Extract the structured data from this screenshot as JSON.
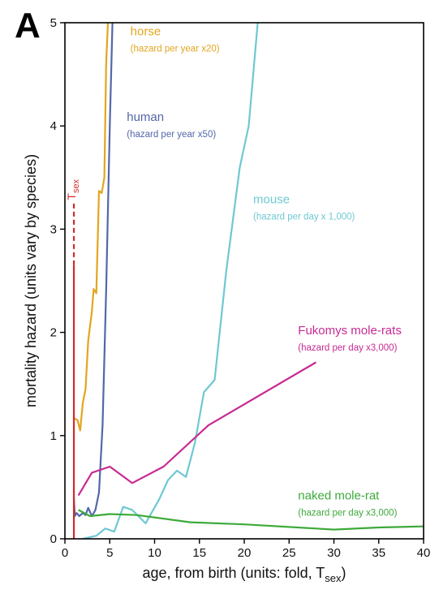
{
  "chart_data": {
    "type": "line",
    "panel_label": "A",
    "xlabel": "age, from birth (units: fold, T",
    "xlabel_sub": "sex",
    "xlabel_tail": ")",
    "ylabel": "mortality hazard (units vary by species)",
    "xlim": [
      0,
      40
    ],
    "ylim": [
      0,
      5
    ],
    "xticks": [
      0,
      5,
      10,
      15,
      20,
      25,
      30,
      35,
      40
    ],
    "yticks": [
      0,
      1,
      2,
      3,
      4,
      5
    ],
    "grid": false,
    "annotations": [
      {
        "id": "tsex",
        "text": "T",
        "sub": "sex",
        "x": 1,
        "y_solid_top": 2.65,
        "y_dash_top": 3.25,
        "color": "#d12b2b"
      }
    ],
    "series": [
      {
        "name": "horse",
        "note": "(hazard per year x20)",
        "color": "#e3a51f",
        "label_x": 7.3,
        "label_y": 4.88,
        "points": [
          [
            1.0,
            1.17
          ],
          [
            1.4,
            1.15
          ],
          [
            1.7,
            1.05
          ],
          [
            2.0,
            1.32
          ],
          [
            2.3,
            1.45
          ],
          [
            2.6,
            1.92
          ],
          [
            3.0,
            2.2
          ],
          [
            3.2,
            2.42
          ],
          [
            3.5,
            2.38
          ],
          [
            3.8,
            3.37
          ],
          [
            4.1,
            3.35
          ],
          [
            4.4,
            3.5
          ],
          [
            4.6,
            4.6
          ],
          [
            4.8,
            5.0
          ]
        ]
      },
      {
        "name": "human",
        "note": "(hazard per year x50)",
        "color": "#5367a9",
        "label_x": 6.9,
        "label_y": 4.05,
        "points": [
          [
            1.0,
            0.4
          ],
          [
            1.1,
            0.22
          ],
          [
            1.3,
            0.25
          ],
          [
            1.6,
            0.22
          ],
          [
            2.0,
            0.25
          ],
          [
            2.3,
            0.23
          ],
          [
            2.6,
            0.3
          ],
          [
            3.0,
            0.22
          ],
          [
            3.4,
            0.28
          ],
          [
            3.8,
            0.45
          ],
          [
            4.2,
            1.1
          ],
          [
            4.6,
            2.4
          ],
          [
            5.0,
            4.0
          ],
          [
            5.3,
            5.0
          ]
        ]
      },
      {
        "name": "mouse",
        "note": "(hazard per day x 1,000)",
        "color": "#6ec8d2",
        "label_x": 21.0,
        "label_y": 3.25,
        "points": [
          [
            2.0,
            0.0
          ],
          [
            3.5,
            0.03
          ],
          [
            4.5,
            0.1
          ],
          [
            5.5,
            0.07
          ],
          [
            6.5,
            0.31
          ],
          [
            7.5,
            0.28
          ],
          [
            9.0,
            0.15
          ],
          [
            10.5,
            0.38
          ],
          [
            11.5,
            0.57
          ],
          [
            12.5,
            0.66
          ],
          [
            13.5,
            0.6
          ],
          [
            14.5,
            0.93
          ],
          [
            15.5,
            1.42
          ],
          [
            16.7,
            1.54
          ],
          [
            18.0,
            2.6
          ],
          [
            19.5,
            3.6
          ],
          [
            20.5,
            4.0
          ],
          [
            21.5,
            5.0
          ]
        ]
      },
      {
        "name": "Fukomys mole-rats",
        "note": "(hazard per day x3,000)",
        "color": "#c72a93",
        "label_x": 26.0,
        "label_y": 1.98,
        "points": [
          [
            1.5,
            0.42
          ],
          [
            3.0,
            0.64
          ],
          [
            5.0,
            0.7
          ],
          [
            7.5,
            0.54
          ],
          [
            11.0,
            0.7
          ],
          [
            16.0,
            1.1
          ],
          [
            28.0,
            1.71
          ]
        ]
      },
      {
        "name": "naked mole-rat",
        "note": "(hazard per day x3,000)",
        "color": "#3daa3a",
        "label_x": 26.0,
        "label_y": 0.38,
        "points": [
          [
            1.5,
            0.28
          ],
          [
            2.8,
            0.22
          ],
          [
            5.0,
            0.24
          ],
          [
            8.0,
            0.23
          ],
          [
            14.0,
            0.16
          ],
          [
            20.0,
            0.14
          ],
          [
            30.0,
            0.09
          ],
          [
            35.0,
            0.11
          ],
          [
            40.0,
            0.12
          ]
        ]
      }
    ]
  }
}
